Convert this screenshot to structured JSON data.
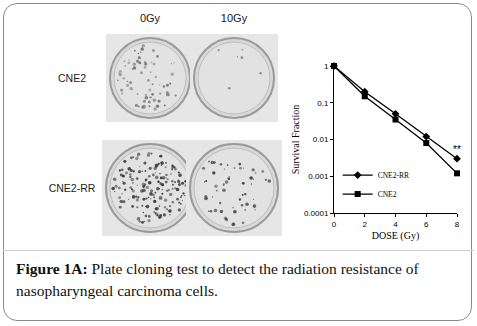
{
  "figure": {
    "column_labels": [
      "0Gy",
      "10Gy"
    ],
    "row_labels": [
      "CNE2",
      "CNE2-RR"
    ],
    "caption": {
      "label": "Figure 1A:",
      "text": "Plate cloning test to detect the radiation resistance of nasopharyngeal carcinoma cells."
    }
  },
  "chart_data": {
    "type": "line",
    "x_label": "DOSE (Gy)",
    "y_label": "Survival Fraction",
    "x": [
      0,
      2,
      4,
      6,
      8
    ],
    "xlim": [
      0,
      8
    ],
    "xticks": [
      0,
      2,
      4,
      6,
      8
    ],
    "ylim": [
      0.0001,
      1
    ],
    "yticks": [
      0.0001,
      0.001,
      0.01,
      0.1,
      1
    ],
    "log": "y",
    "grid": false,
    "legend": "lower left",
    "series": [
      {
        "name": "CNE2-RR",
        "color": "#000000",
        "marker": "diamond",
        "line_style": "solid",
        "values": [
          1,
          0.2,
          0.05,
          0.012,
          0.003
        ]
      },
      {
        "name": "CNE2",
        "color": "#000000",
        "marker": "square",
        "line_style": "solid",
        "values": [
          1,
          0.15,
          0.035,
          0.008,
          0.0012
        ]
      }
    ],
    "annotations": [
      {
        "x": 8,
        "y": 0.003,
        "text": "**"
      }
    ]
  }
}
